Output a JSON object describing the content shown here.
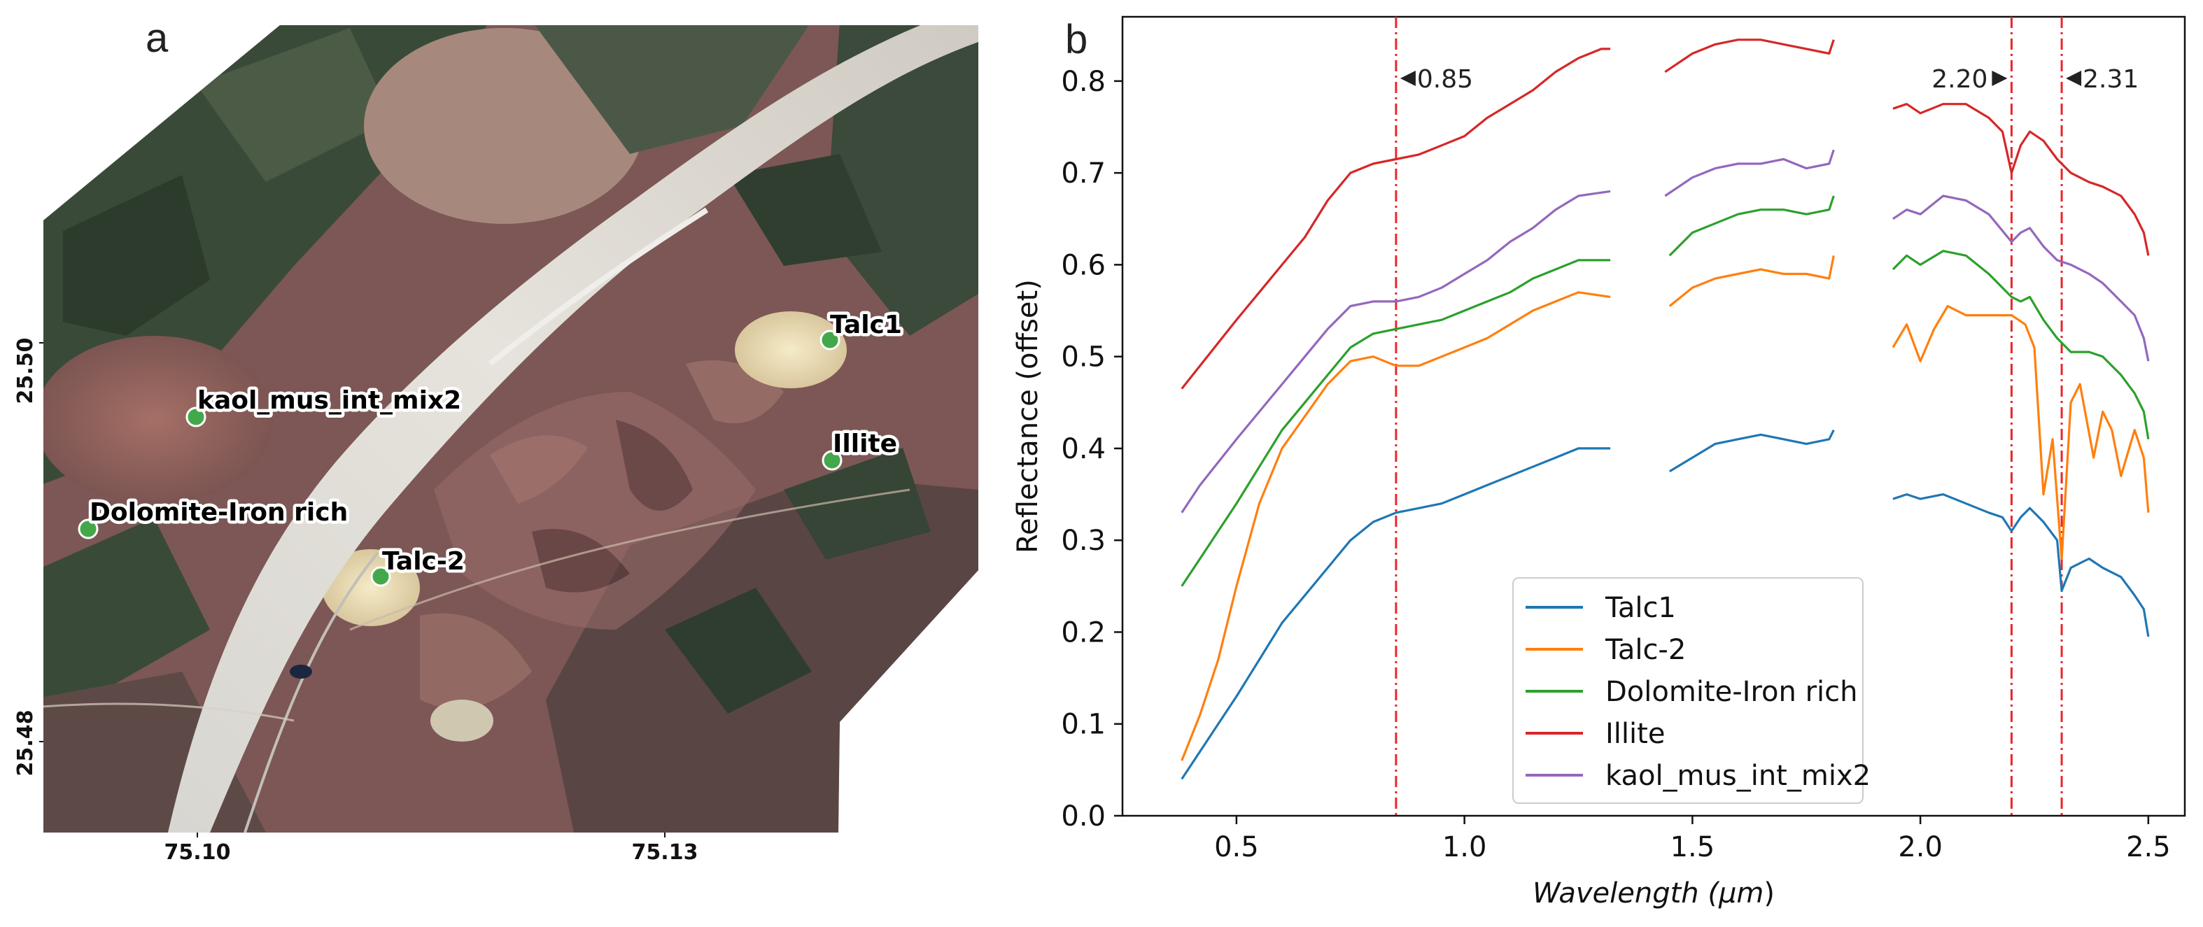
{
  "panel_a": {
    "letter": "a",
    "lat_ticks": [
      "25.50",
      "25.48"
    ],
    "lon_ticks": [
      "75.10",
      "75.13"
    ],
    "sites": [
      {
        "label": "Talc1",
        "color": "#43a84a"
      },
      {
        "label": "kaol_mus_int_mix2",
        "color": "#43a84a"
      },
      {
        "label": "Illite",
        "color": "#43a84a"
      },
      {
        "label": "Dolomite-Iron rich",
        "color": "#43a84a"
      },
      {
        "label": "Talc-2",
        "color": "#43a84a"
      }
    ]
  },
  "chart_data": {
    "type": "line",
    "panel_letter": "b",
    "title": "",
    "xlabel_prefix": "Wavelength (",
    "xlabel_unit": "μm",
    "xlabel_suffix": ")",
    "ylabel": "Reflectance (offset)",
    "xlim": [
      0.25,
      2.58
    ],
    "ylim": [
      0.0,
      0.87
    ],
    "xticks": [
      0.5,
      1.0,
      1.5,
      2.0,
      2.5
    ],
    "xtick_labels": [
      "0.5",
      "1.0",
      "1.5",
      "2.0",
      "2.5"
    ],
    "yticks": [
      0.0,
      0.1,
      0.2,
      0.3,
      0.4,
      0.5,
      0.6,
      0.7,
      0.8
    ],
    "ytick_labels": [
      "0.0",
      "0.1",
      "0.2",
      "0.3",
      "0.4",
      "0.5",
      "0.6",
      "0.7",
      "0.8"
    ],
    "grid": false,
    "legend_position": "lower-center",
    "vlines": [
      {
        "x": 0.85,
        "label": "0.85",
        "arrow": "left"
      },
      {
        "x": 2.2,
        "label": "2.20",
        "arrow": "right"
      },
      {
        "x": 2.31,
        "label": "2.31",
        "arrow": "left"
      }
    ],
    "vline_color": "#e8262b",
    "series": [
      {
        "name": "Talc1",
        "color": "#1f77b4",
        "segments": [
          [
            [
              0.38,
              0.04
            ],
            [
              0.42,
              0.07
            ],
            [
              0.46,
              0.1
            ],
            [
              0.5,
              0.13
            ],
            [
              0.55,
              0.17
            ],
            [
              0.6,
              0.21
            ],
            [
              0.65,
              0.24
            ],
            [
              0.7,
              0.27
            ],
            [
              0.75,
              0.3
            ],
            [
              0.8,
              0.32
            ],
            [
              0.85,
              0.33
            ],
            [
              0.9,
              0.335
            ],
            [
              0.95,
              0.34
            ],
            [
              1.0,
              0.35
            ],
            [
              1.05,
              0.36
            ],
            [
              1.1,
              0.37
            ],
            [
              1.15,
              0.38
            ],
            [
              1.2,
              0.39
            ],
            [
              1.25,
              0.4
            ],
            [
              1.32,
              0.4
            ]
          ],
          [
            [
              1.45,
              0.375
            ],
            [
              1.5,
              0.39
            ],
            [
              1.55,
              0.405
            ],
            [
              1.6,
              0.41
            ],
            [
              1.65,
              0.415
            ],
            [
              1.7,
              0.41
            ],
            [
              1.75,
              0.405
            ],
            [
              1.8,
              0.41
            ],
            [
              1.81,
              0.42
            ]
          ],
          [
            [
              1.94,
              0.345
            ],
            [
              1.97,
              0.35
            ],
            [
              2.0,
              0.345
            ],
            [
              2.05,
              0.35
            ],
            [
              2.1,
              0.34
            ],
            [
              2.15,
              0.33
            ],
            [
              2.18,
              0.325
            ],
            [
              2.2,
              0.31
            ],
            [
              2.22,
              0.325
            ],
            [
              2.24,
              0.335
            ],
            [
              2.27,
              0.32
            ],
            [
              2.3,
              0.3
            ],
            [
              2.31,
              0.245
            ],
            [
              2.33,
              0.27
            ],
            [
              2.37,
              0.28
            ],
            [
              2.4,
              0.27
            ],
            [
              2.44,
              0.26
            ],
            [
              2.47,
              0.24
            ],
            [
              2.49,
              0.225
            ],
            [
              2.5,
              0.195
            ]
          ]
        ]
      },
      {
        "name": "Talc-2",
        "color": "#ff7f0e",
        "segments": [
          [
            [
              0.38,
              0.06
            ],
            [
              0.42,
              0.11
            ],
            [
              0.46,
              0.17
            ],
            [
              0.5,
              0.25
            ],
            [
              0.55,
              0.34
            ],
            [
              0.6,
              0.4
            ],
            [
              0.65,
              0.435
            ],
            [
              0.7,
              0.47
            ],
            [
              0.75,
              0.495
            ],
            [
              0.8,
              0.5
            ],
            [
              0.85,
              0.49
            ],
            [
              0.9,
              0.49
            ],
            [
              0.95,
              0.5
            ],
            [
              1.0,
              0.51
            ],
            [
              1.05,
              0.52
            ],
            [
              1.1,
              0.535
            ],
            [
              1.15,
              0.55
            ],
            [
              1.2,
              0.56
            ],
            [
              1.25,
              0.57
            ],
            [
              1.32,
              0.565
            ]
          ],
          [
            [
              1.45,
              0.555
            ],
            [
              1.5,
              0.575
            ],
            [
              1.55,
              0.585
            ],
            [
              1.6,
              0.59
            ],
            [
              1.65,
              0.595
            ],
            [
              1.7,
              0.59
            ],
            [
              1.75,
              0.59
            ],
            [
              1.8,
              0.585
            ],
            [
              1.81,
              0.61
            ]
          ],
          [
            [
              1.94,
              0.51
            ],
            [
              1.97,
              0.535
            ],
            [
              2.0,
              0.495
            ],
            [
              2.03,
              0.53
            ],
            [
              2.06,
              0.555
            ],
            [
              2.1,
              0.545
            ],
            [
              2.15,
              0.545
            ],
            [
              2.2,
              0.545
            ],
            [
              2.23,
              0.535
            ],
            [
              2.25,
              0.51
            ],
            [
              2.27,
              0.35
            ],
            [
              2.29,
              0.41
            ],
            [
              2.31,
              0.28
            ],
            [
              2.33,
              0.45
            ],
            [
              2.35,
              0.47
            ],
            [
              2.38,
              0.39
            ],
            [
              2.4,
              0.44
            ],
            [
              2.42,
              0.42
            ],
            [
              2.44,
              0.37
            ],
            [
              2.47,
              0.42
            ],
            [
              2.49,
              0.39
            ],
            [
              2.5,
              0.33
            ]
          ]
        ]
      },
      {
        "name": "Dolomite-Iron rich",
        "color": "#2ca02c",
        "segments": [
          [
            [
              0.38,
              0.25
            ],
            [
              0.42,
              0.28
            ],
            [
              0.46,
              0.31
            ],
            [
              0.5,
              0.34
            ],
            [
              0.55,
              0.38
            ],
            [
              0.6,
              0.42
            ],
            [
              0.65,
              0.45
            ],
            [
              0.7,
              0.48
            ],
            [
              0.75,
              0.51
            ],
            [
              0.8,
              0.525
            ],
            [
              0.85,
              0.53
            ],
            [
              0.9,
              0.535
            ],
            [
              0.95,
              0.54
            ],
            [
              1.0,
              0.55
            ],
            [
              1.05,
              0.56
            ],
            [
              1.1,
              0.57
            ],
            [
              1.15,
              0.585
            ],
            [
              1.2,
              0.595
            ],
            [
              1.25,
              0.605
            ],
            [
              1.32,
              0.605
            ]
          ],
          [
            [
              1.45,
              0.61
            ],
            [
              1.5,
              0.635
            ],
            [
              1.55,
              0.645
            ],
            [
              1.6,
              0.655
            ],
            [
              1.65,
              0.66
            ],
            [
              1.7,
              0.66
            ],
            [
              1.75,
              0.655
            ],
            [
              1.8,
              0.66
            ],
            [
              1.81,
              0.675
            ]
          ],
          [
            [
              1.94,
              0.595
            ],
            [
              1.97,
              0.61
            ],
            [
              2.0,
              0.6
            ],
            [
              2.05,
              0.615
            ],
            [
              2.1,
              0.61
            ],
            [
              2.15,
              0.59
            ],
            [
              2.2,
              0.565
            ],
            [
              2.22,
              0.56
            ],
            [
              2.24,
              0.565
            ],
            [
              2.27,
              0.54
            ],
            [
              2.3,
              0.52
            ],
            [
              2.33,
              0.505
            ],
            [
              2.37,
              0.505
            ],
            [
              2.4,
              0.5
            ],
            [
              2.44,
              0.48
            ],
            [
              2.47,
              0.46
            ],
            [
              2.49,
              0.44
            ],
            [
              2.5,
              0.41
            ]
          ]
        ]
      },
      {
        "name": "Illite",
        "color": "#d62728",
        "segments": [
          [
            [
              0.38,
              0.465
            ],
            [
              0.42,
              0.49
            ],
            [
              0.46,
              0.515
            ],
            [
              0.5,
              0.54
            ],
            [
              0.55,
              0.57
            ],
            [
              0.6,
              0.6
            ],
            [
              0.65,
              0.63
            ],
            [
              0.7,
              0.67
            ],
            [
              0.75,
              0.7
            ],
            [
              0.8,
              0.71
            ],
            [
              0.85,
              0.715
            ],
            [
              0.9,
              0.72
            ],
            [
              0.95,
              0.73
            ],
            [
              1.0,
              0.74
            ],
            [
              1.05,
              0.76
            ],
            [
              1.1,
              0.775
            ],
            [
              1.15,
              0.79
            ],
            [
              1.2,
              0.81
            ],
            [
              1.25,
              0.825
            ],
            [
              1.3,
              0.835
            ],
            [
              1.32,
              0.835
            ]
          ],
          [
            [
              1.44,
              0.81
            ],
            [
              1.5,
              0.83
            ],
            [
              1.55,
              0.84
            ],
            [
              1.6,
              0.845
            ],
            [
              1.65,
              0.845
            ],
            [
              1.7,
              0.84
            ],
            [
              1.75,
              0.835
            ],
            [
              1.8,
              0.83
            ],
            [
              1.81,
              0.845
            ]
          ],
          [
            [
              1.94,
              0.77
            ],
            [
              1.97,
              0.775
            ],
            [
              2.0,
              0.765
            ],
            [
              2.05,
              0.775
            ],
            [
              2.1,
              0.775
            ],
            [
              2.15,
              0.76
            ],
            [
              2.18,
              0.745
            ],
            [
              2.2,
              0.7
            ],
            [
              2.22,
              0.73
            ],
            [
              2.24,
              0.745
            ],
            [
              2.27,
              0.735
            ],
            [
              2.3,
              0.715
            ],
            [
              2.33,
              0.7
            ],
            [
              2.37,
              0.69
            ],
            [
              2.4,
              0.685
            ],
            [
              2.44,
              0.675
            ],
            [
              2.47,
              0.655
            ],
            [
              2.49,
              0.635
            ],
            [
              2.5,
              0.61
            ]
          ]
        ]
      },
      {
        "name": "kaol_mus_int_mix2",
        "color": "#9467bd",
        "segments": [
          [
            [
              0.38,
              0.33
            ],
            [
              0.42,
              0.36
            ],
            [
              0.46,
              0.385
            ],
            [
              0.5,
              0.41
            ],
            [
              0.55,
              0.44
            ],
            [
              0.6,
              0.47
            ],
            [
              0.65,
              0.5
            ],
            [
              0.7,
              0.53
            ],
            [
              0.75,
              0.555
            ],
            [
              0.8,
              0.56
            ],
            [
              0.85,
              0.56
            ],
            [
              0.9,
              0.565
            ],
            [
              0.95,
              0.575
            ],
            [
              1.0,
              0.59
            ],
            [
              1.05,
              0.605
            ],
            [
              1.1,
              0.625
            ],
            [
              1.15,
              0.64
            ],
            [
              1.2,
              0.66
            ],
            [
              1.25,
              0.675
            ],
            [
              1.32,
              0.68
            ]
          ],
          [
            [
              1.44,
              0.675
            ],
            [
              1.5,
              0.695
            ],
            [
              1.55,
              0.705
            ],
            [
              1.6,
              0.71
            ],
            [
              1.65,
              0.71
            ],
            [
              1.7,
              0.715
            ],
            [
              1.75,
              0.705
            ],
            [
              1.8,
              0.71
            ],
            [
              1.81,
              0.725
            ]
          ],
          [
            [
              1.94,
              0.65
            ],
            [
              1.97,
              0.66
            ],
            [
              2.0,
              0.655
            ],
            [
              2.05,
              0.675
            ],
            [
              2.1,
              0.67
            ],
            [
              2.15,
              0.655
            ],
            [
              2.2,
              0.625
            ],
            [
              2.22,
              0.635
            ],
            [
              2.24,
              0.64
            ],
            [
              2.27,
              0.62
            ],
            [
              2.3,
              0.605
            ],
            [
              2.33,
              0.6
            ],
            [
              2.37,
              0.59
            ],
            [
              2.4,
              0.58
            ],
            [
              2.44,
              0.56
            ],
            [
              2.47,
              0.545
            ],
            [
              2.49,
              0.52
            ],
            [
              2.5,
              0.495
            ]
          ]
        ]
      }
    ]
  }
}
